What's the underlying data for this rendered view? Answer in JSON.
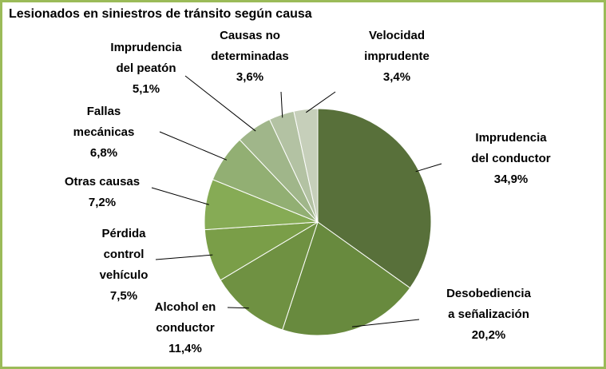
{
  "chart_data": {
    "type": "pie",
    "title": "Lesionados en siniestros de tránsito según causa",
    "categories": [
      "Imprudencia\ndel conductor",
      "Desobediencia\na señalización",
      "Alcohol  en\nconductor",
      "Pérdida\ncontrol\nvehículo",
      "Otras causas",
      "Fallas\nmecánicas",
      "Imprudencia\ndel peatón",
      "Causas no\ndeterminadas",
      "Velocidad\nimprudente"
    ],
    "values": [
      34.9,
      20.2,
      11.4,
      7.5,
      7.2,
      6.8,
      5.1,
      3.6,
      3.4
    ],
    "value_labels": [
      "34,9%",
      "20,2%",
      "11,4%",
      "7,5%",
      "7,2%",
      "6,8%",
      "5,1%",
      "3,6%",
      "3,4%"
    ],
    "colors": [
      "#58703a",
      "#688a3e",
      "#6f9142",
      "#7a9e48",
      "#86ab55",
      "#92af73",
      "#a0b68a",
      "#b3c2a3",
      "#c6cfba"
    ]
  }
}
